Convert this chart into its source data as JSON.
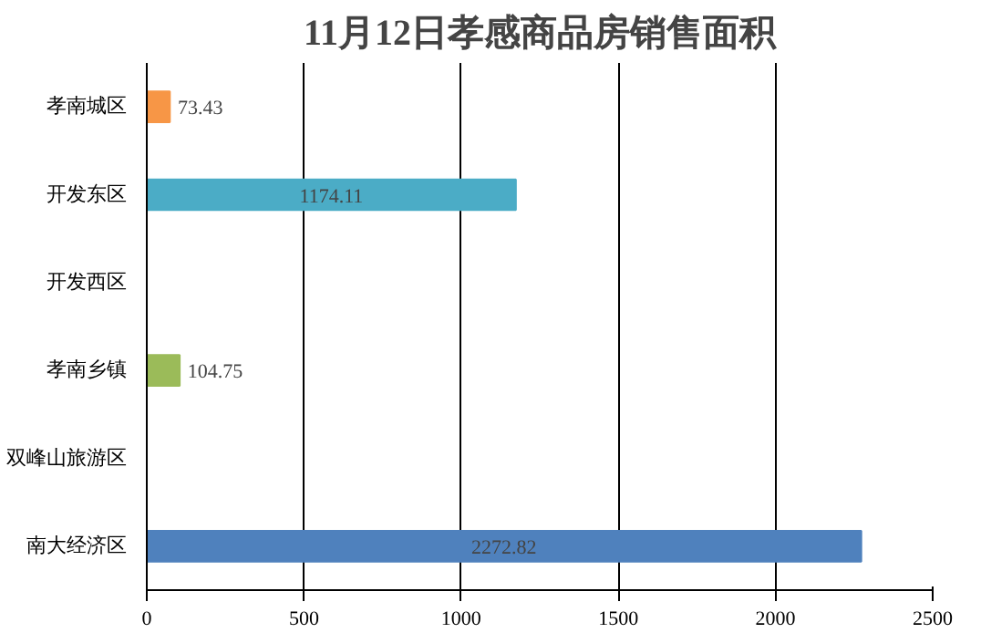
{
  "chart_data": {
    "type": "bar",
    "orientation": "horizontal",
    "title": "11月12日孝感商品房销售面积",
    "categories": [
      "孝南城区",
      "开发东区",
      "开发西区",
      "孝南乡镇",
      "双峰山旅游区",
      "南大经济区"
    ],
    "values": [
      73.43,
      1174.11,
      0,
      104.75,
      0,
      2272.82
    ],
    "value_labels": [
      "73.43",
      "1174.11",
      null,
      "104.75",
      null,
      "2272.82"
    ],
    "colors": [
      "#f79646",
      "#4bacc6",
      "#4f81bd",
      "#9bbb59",
      "#4f81bd",
      "#4f81bd"
    ],
    "xlim": [
      0,
      2500
    ],
    "xticks": [
      0,
      500,
      1000,
      1500,
      2000,
      2500
    ],
    "grid": "x"
  }
}
